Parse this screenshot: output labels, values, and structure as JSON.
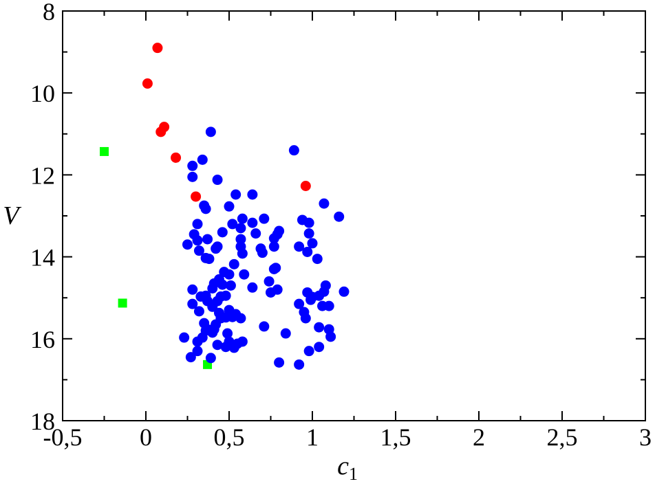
{
  "chart_data": {
    "type": "scatter",
    "title": "",
    "xlabel": "c",
    "xlabel_subscript": "1",
    "ylabel": "V",
    "xlim": [
      -0.5,
      3
    ],
    "ylim": [
      8,
      18
    ],
    "y_inverted": true,
    "grid": false,
    "x_ticks": [
      {
        "value": -0.5,
        "label": "-0,5"
      },
      {
        "value": 0,
        "label": "0"
      },
      {
        "value": 0.5,
        "label": "0,5"
      },
      {
        "value": 1,
        "label": "1"
      },
      {
        "value": 1.5,
        "label": "1,5"
      },
      {
        "value": 2,
        "label": "2"
      },
      {
        "value": 2.5,
        "label": "2,5"
      },
      {
        "value": 3,
        "label": "3"
      }
    ],
    "y_ticks": [
      {
        "value": 8,
        "label": "8"
      },
      {
        "value": 10,
        "label": "10"
      },
      {
        "value": 12,
        "label": "12"
      },
      {
        "value": 14,
        "label": "14"
      },
      {
        "value": 16,
        "label": "16"
      },
      {
        "value": 18,
        "label": "18"
      }
    ],
    "series": [
      {
        "marker": "circle",
        "color": "#ff0000",
        "points": [
          [
            0.07,
            8.9
          ],
          [
            0.01,
            9.77
          ],
          [
            0.11,
            10.83
          ],
          [
            0.09,
            10.95
          ],
          [
            0.18,
            11.58
          ],
          [
            0.3,
            12.53
          ],
          [
            0.96,
            12.27
          ]
        ]
      },
      {
        "marker": "square",
        "color": "#00ff00",
        "points": [
          [
            -0.25,
            11.43
          ],
          [
            -0.14,
            15.13
          ],
          [
            0.37,
            16.63
          ]
        ]
      },
      {
        "marker": "circle",
        "color": "#0000ff",
        "points": [
          [
            0.39,
            10.95
          ],
          [
            0.89,
            11.4
          ],
          [
            0.34,
            11.63
          ],
          [
            0.28,
            11.78
          ],
          [
            0.28,
            12.05
          ],
          [
            0.43,
            12.12
          ],
          [
            0.54,
            12.48
          ],
          [
            0.64,
            12.48
          ],
          [
            1.07,
            12.7
          ],
          [
            0.35,
            12.75
          ],
          [
            0.36,
            12.83
          ],
          [
            0.5,
            12.77
          ],
          [
            1.16,
            13.02
          ],
          [
            0.58,
            13.07
          ],
          [
            0.71,
            13.07
          ],
          [
            0.94,
            13.1
          ],
          [
            0.98,
            13.17
          ],
          [
            0.31,
            13.2
          ],
          [
            0.52,
            13.2
          ],
          [
            0.64,
            13.17
          ],
          [
            0.46,
            13.4
          ],
          [
            0.57,
            13.3
          ],
          [
            0.8,
            13.37
          ],
          [
            0.29,
            13.45
          ],
          [
            0.66,
            13.43
          ],
          [
            0.98,
            13.43
          ],
          [
            0.37,
            13.57
          ],
          [
            0.31,
            13.6
          ],
          [
            0.57,
            13.57
          ],
          [
            0.77,
            13.55
          ],
          [
            0.79,
            13.45
          ],
          [
            0.25,
            13.7
          ],
          [
            0.42,
            13.8
          ],
          [
            0.43,
            13.75
          ],
          [
            0.57,
            13.75
          ],
          [
            0.69,
            13.8
          ],
          [
            0.77,
            13.75
          ],
          [
            0.92,
            13.75
          ],
          [
            1.0,
            13.67
          ],
          [
            0.32,
            13.85
          ],
          [
            0.58,
            13.92
          ],
          [
            0.7,
            13.9
          ],
          [
            0.97,
            13.88
          ],
          [
            0.36,
            14.03
          ],
          [
            0.38,
            14.05
          ],
          [
            1.03,
            14.05
          ],
          [
            0.53,
            14.18
          ],
          [
            0.78,
            14.27
          ],
          [
            0.77,
            14.3
          ],
          [
            0.47,
            14.37
          ],
          [
            0.5,
            14.43
          ],
          [
            0.59,
            14.43
          ],
          [
            0.44,
            14.55
          ],
          [
            0.74,
            14.6
          ],
          [
            0.41,
            14.65
          ],
          [
            0.46,
            14.68
          ],
          [
            0.51,
            14.7
          ],
          [
            1.08,
            14.7
          ],
          [
            0.28,
            14.8
          ],
          [
            0.4,
            14.77
          ],
          [
            0.64,
            14.75
          ],
          [
            0.79,
            14.8
          ],
          [
            0.75,
            14.87
          ],
          [
            0.97,
            14.87
          ],
          [
            1.07,
            14.85
          ],
          [
            1.19,
            14.85
          ],
          [
            0.33,
            14.97
          ],
          [
            0.36,
            14.95
          ],
          [
            0.45,
            14.97
          ],
          [
            0.48,
            14.95
          ],
          [
            1.0,
            14.98
          ],
          [
            1.04,
            14.95
          ],
          [
            0.37,
            15.08
          ],
          [
            0.43,
            15.08
          ],
          [
            0.99,
            15.05
          ],
          [
            0.28,
            15.15
          ],
          [
            0.4,
            15.22
          ],
          [
            0.5,
            15.3
          ],
          [
            0.92,
            15.15
          ],
          [
            1.06,
            15.2
          ],
          [
            1.1,
            15.2
          ],
          [
            0.32,
            15.33
          ],
          [
            0.44,
            15.37
          ],
          [
            0.54,
            15.4
          ],
          [
            0.95,
            15.35
          ],
          [
            0.45,
            15.5
          ],
          [
            0.48,
            15.48
          ],
          [
            0.52,
            15.47
          ],
          [
            0.57,
            15.5
          ],
          [
            0.96,
            15.5
          ],
          [
            0.35,
            15.62
          ],
          [
            0.42,
            15.65
          ],
          [
            0.71,
            15.7
          ],
          [
            1.04,
            15.72
          ],
          [
            1.1,
            15.77
          ],
          [
            0.36,
            15.8
          ],
          [
            0.38,
            15.78
          ],
          [
            0.41,
            15.77
          ],
          [
            0.4,
            15.85
          ],
          [
            0.49,
            15.87
          ],
          [
            0.84,
            15.87
          ],
          [
            0.23,
            15.97
          ],
          [
            0.34,
            15.97
          ],
          [
            1.11,
            15.95
          ],
          [
            0.31,
            16.07
          ],
          [
            0.5,
            16.07
          ],
          [
            0.58,
            16.07
          ],
          [
            0.43,
            16.15
          ],
          [
            0.48,
            16.2
          ],
          [
            0.53,
            16.22
          ],
          [
            0.55,
            16.12
          ],
          [
            1.04,
            16.2
          ],
          [
            0.31,
            16.3
          ],
          [
            0.98,
            16.3
          ],
          [
            0.27,
            16.45
          ],
          [
            0.39,
            16.47
          ],
          [
            0.8,
            16.58
          ],
          [
            0.92,
            16.63
          ]
        ]
      }
    ]
  }
}
